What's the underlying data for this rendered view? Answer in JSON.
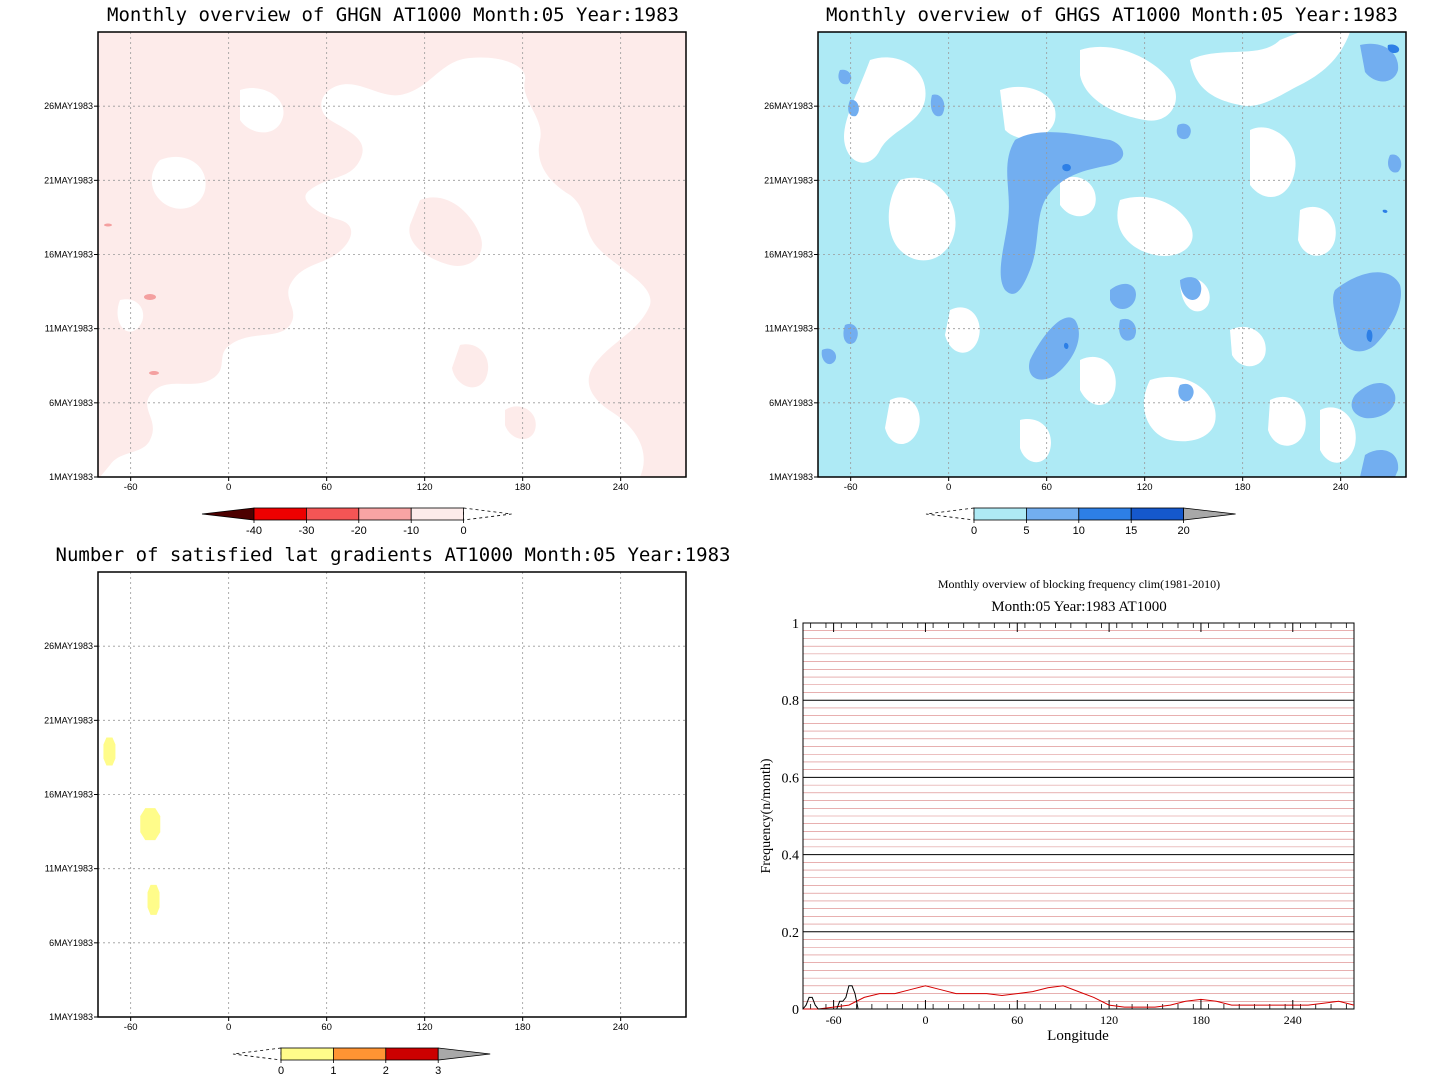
{
  "colors": {
    "ghgn_fill": "#fdebea",
    "ghgs_light": "#aeeaf5",
    "ghgs_mid": "#72aef0",
    "ghgs_dark": "#2d7fe6",
    "yellow": "#fffc8a",
    "orange": "#ff9433",
    "darkred": "#cc0000",
    "gray": "#a8a8a8",
    "freq_line": "#d40000",
    "clim_line": "#000000",
    "pink_grid": "#d98080"
  },
  "chart_data": [
    {
      "id": "ghgn",
      "type": "heatmap",
      "title": "Monthly overview of GHGN AT1000 Month:05 Year:1983",
      "x_ticks": [
        "-60",
        "0",
        "60",
        "120",
        "180",
        "240"
      ],
      "x_tick_values": [
        -60,
        0,
        60,
        120,
        180,
        240
      ],
      "xlim": [
        -80,
        280
      ],
      "y_ticks": [
        "1MAY1983",
        "6MAY1983",
        "11MAY1983",
        "16MAY1983",
        "21MAY1983",
        "26MAY1983"
      ],
      "y_tick_values": [
        1,
        6,
        11,
        16,
        21,
        26
      ],
      "ylim": [
        1,
        31
      ],
      "grid": true,
      "colorbar": {
        "labels": [
          "-40",
          "-30",
          "-20",
          "-10",
          "0"
        ],
        "colors": [
          "#4d0000",
          "#ee0000",
          "#f45555",
          "#f8a4a4",
          "#fdebea"
        ]
      }
    },
    {
      "id": "ghgs",
      "type": "heatmap",
      "title": "Monthly overview of GHGS AT1000 Month:05 Year:1983",
      "x_ticks": [
        "-60",
        "0",
        "60",
        "120",
        "180",
        "240"
      ],
      "x_tick_values": [
        -60,
        0,
        60,
        120,
        180,
        240
      ],
      "xlim": [
        -80,
        280
      ],
      "y_ticks": [
        "1MAY1983",
        "6MAY1983",
        "11MAY1983",
        "16MAY1983",
        "21MAY1983",
        "26MAY1983"
      ],
      "y_tick_values": [
        1,
        6,
        11,
        16,
        21,
        26
      ],
      "ylim": [
        1,
        31
      ],
      "grid": true,
      "colorbar": {
        "labels": [
          "0",
          "5",
          "10",
          "15",
          "20"
        ],
        "colors": [
          "#aeeaf5",
          "#72aef0",
          "#2d7fe6",
          "#1558cc",
          "#a8a8a8"
        ]
      }
    },
    {
      "id": "lat",
      "type": "heatmap",
      "title": "Number of satisfied lat gradients AT1000 Month:05 Year:1983",
      "x_ticks": [
        "-60",
        "0",
        "60",
        "120",
        "180",
        "240"
      ],
      "x_tick_values": [
        -60,
        0,
        60,
        120,
        180,
        240
      ],
      "xlim": [
        -80,
        280
      ],
      "y_ticks": [
        "1MAY1983",
        "6MAY1983",
        "11MAY1983",
        "16MAY1983",
        "21MAY1983",
        "26MAY1983"
      ],
      "y_tick_values": [
        1,
        6,
        11,
        16,
        21,
        26
      ],
      "ylim": [
        1,
        31
      ],
      "grid": true,
      "blobs": [
        {
          "x": -73,
          "y": 18.9,
          "value": 1
        },
        {
          "x": -48,
          "y": 14,
          "value": 1
        },
        {
          "x": -46,
          "y": 8.9,
          "value": 1
        }
      ],
      "colorbar": {
        "labels": [
          "0",
          "1",
          "2",
          "3"
        ],
        "colors": [
          "#fffc8a",
          "#ff9433",
          "#cc0000",
          "#a8a8a8"
        ]
      }
    },
    {
      "id": "freq",
      "type": "line",
      "title": "Monthly overview of blocking frequency clim(1981-2010)",
      "subtitle": "Month:05 Year:1983  AT1000",
      "xlabel": "Longitude",
      "ylabel": "Frequency(n/month)",
      "xlim": [
        -80,
        280
      ],
      "ylim": [
        0,
        1
      ],
      "x_ticks": [
        "-60",
        "0",
        "60",
        "120",
        "180",
        "240"
      ],
      "x_tick_values": [
        -60,
        0,
        60,
        120,
        180,
        240
      ],
      "y_ticks": [
        "0",
        "0.2",
        "0.4",
        "0.6",
        "0.8",
        "1"
      ],
      "y_tick_values": [
        0,
        0.2,
        0.4,
        0.6,
        0.8,
        1
      ],
      "series": [
        {
          "color": "#d40000",
          "x": [
            -80,
            -70,
            -60,
            -50,
            -40,
            -30,
            -20,
            -10,
            0,
            10,
            20,
            30,
            40,
            50,
            60,
            70,
            80,
            90,
            100,
            110,
            120,
            130,
            140,
            150,
            160,
            170,
            180,
            190,
            200,
            210,
            220,
            230,
            240,
            250,
            260,
            270,
            280
          ],
          "y": [
            0.0,
            0.0,
            0.005,
            0.01,
            0.03,
            0.04,
            0.04,
            0.05,
            0.06,
            0.05,
            0.04,
            0.04,
            0.04,
            0.035,
            0.04,
            0.045,
            0.055,
            0.06,
            0.045,
            0.03,
            0.01,
            0.005,
            0.005,
            0.005,
            0.01,
            0.02,
            0.025,
            0.02,
            0.01,
            0.01,
            0.01,
            0.01,
            0.01,
            0.01,
            0.015,
            0.02,
            0.01
          ]
        },
        {
          "color": "#000000",
          "x": [
            -80,
            -78,
            -76,
            -74,
            -72,
            -70,
            -66,
            -62,
            -58,
            -56,
            -54,
            -52,
            -50,
            -48,
            -46,
            -44,
            -42,
            -40
          ],
          "y": [
            0.0,
            0.01,
            0.03,
            0.03,
            0.01,
            0.0,
            0.0,
            0.0,
            0.0,
            0.02,
            0.02,
            0.03,
            0.06,
            0.06,
            0.04,
            0.0,
            0.0,
            0.0
          ]
        }
      ]
    }
  ]
}
